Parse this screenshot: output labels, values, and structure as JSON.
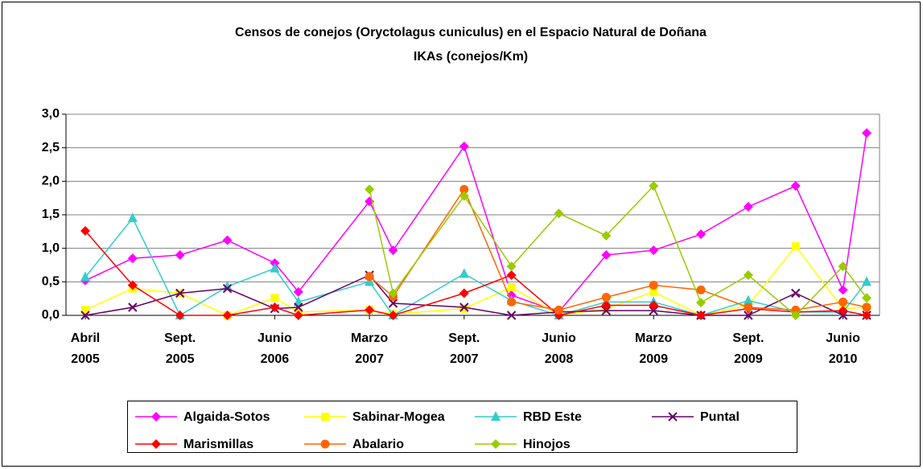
{
  "chart_data": {
    "type": "line",
    "title": "Censos de conejos (Oryctolagus cuniculus) en el Espacio Natural de Doñana",
    "subtitle": "IKAs (conejos/Km)",
    "x": [
      0,
      2,
      4,
      6,
      8,
      9,
      12,
      13,
      16,
      18,
      20,
      22,
      24,
      26,
      28,
      30,
      32,
      33
    ],
    "xlim": [
      0,
      33
    ],
    "xticks": [
      {
        "value": 0,
        "label": "Abril 2005"
      },
      {
        "value": 4,
        "label": "Sept. 2005"
      },
      {
        "value": 8,
        "label": "Junio 2006"
      },
      {
        "value": 12,
        "label": "Marzo 2007"
      },
      {
        "value": 16,
        "label": "Sept. 2007"
      },
      {
        "value": 20,
        "label": "Junio 2008"
      },
      {
        "value": 24,
        "label": "Marzo 2009"
      },
      {
        "value": 28,
        "label": "Sept. 2009"
      },
      {
        "value": 32,
        "label": "Junio 2010"
      }
    ],
    "ylim": [
      0,
      3
    ],
    "yticks": [
      {
        "value": 0,
        "label": "0,0"
      },
      {
        "value": 0.5,
        "label": "0,5"
      },
      {
        "value": 1,
        "label": "1,0"
      },
      {
        "value": 1.5,
        "label": "1,5"
      },
      {
        "value": 2,
        "label": "2,0"
      },
      {
        "value": 2.5,
        "label": "2,5"
      },
      {
        "value": 3,
        "label": "3,0"
      }
    ],
    "grid": true,
    "legend": "bottom",
    "series": [
      {
        "name": "Algaida-Sotos",
        "color": "#ff00ff",
        "marker": "diamond",
        "values": [
          0.52,
          0.85,
          0.9,
          1.12,
          0.78,
          0.35,
          1.7,
          0.97,
          2.52,
          0.3,
          0.05,
          0.9,
          0.97,
          1.21,
          1.62,
          1.93,
          0.38,
          2.72
        ]
      },
      {
        "name": "Sabinar-Mogea",
        "color": "#ffff00",
        "marker": "square",
        "values": [
          0.08,
          0.4,
          0.33,
          0,
          0.26,
          0.05,
          0.08,
          0.02,
          0.1,
          0.42,
          0,
          0.1,
          0.35,
          0,
          0.15,
          1.03,
          0.1,
          0.12
        ]
      },
      {
        "name": "RBD Este",
        "color": "#33cccc",
        "marker": "triangle",
        "values": [
          0.57,
          1.45,
          0,
          0.43,
          0.7,
          0.2,
          0.5,
          0,
          0.62,
          0.22,
          0,
          0.2,
          0.2,
          0,
          0.22,
          0.05,
          0.05,
          0.5
        ]
      },
      {
        "name": "Puntal",
        "color": "#660066",
        "marker": "x",
        "values": [
          0,
          0.12,
          0.33,
          0.4,
          0.1,
          0.12,
          0.6,
          0.18,
          0.12,
          0,
          0.05,
          0.07,
          0.07,
          0,
          0,
          0.33,
          0,
          0
        ]
      },
      {
        "name": "Marismillas",
        "color": "#ff0000",
        "marker": "diamond",
        "values": [
          1.26,
          0.45,
          0,
          0,
          0.12,
          0,
          0.08,
          0,
          0.33,
          0.6,
          0,
          0.15,
          0.15,
          0,
          0.1,
          0.05,
          0.07,
          0
        ]
      },
      {
        "name": "Abalario",
        "color": "#ff6600",
        "marker": "circle",
        "values": [
          null,
          null,
          null,
          null,
          null,
          null,
          0.58,
          0.28,
          1.88,
          0.2,
          0.08,
          0.27,
          0.45,
          0.38,
          0.12,
          0.08,
          0.2,
          0.12
        ]
      },
      {
        "name": "Hinojos",
        "color": "#99cc00",
        "marker": "diamond",
        "values": [
          null,
          null,
          null,
          null,
          null,
          null,
          1.88,
          0.33,
          1.78,
          0.73,
          1.52,
          1.19,
          1.93,
          0.19,
          0.6,
          0,
          0.73,
          0.26
        ]
      }
    ]
  }
}
